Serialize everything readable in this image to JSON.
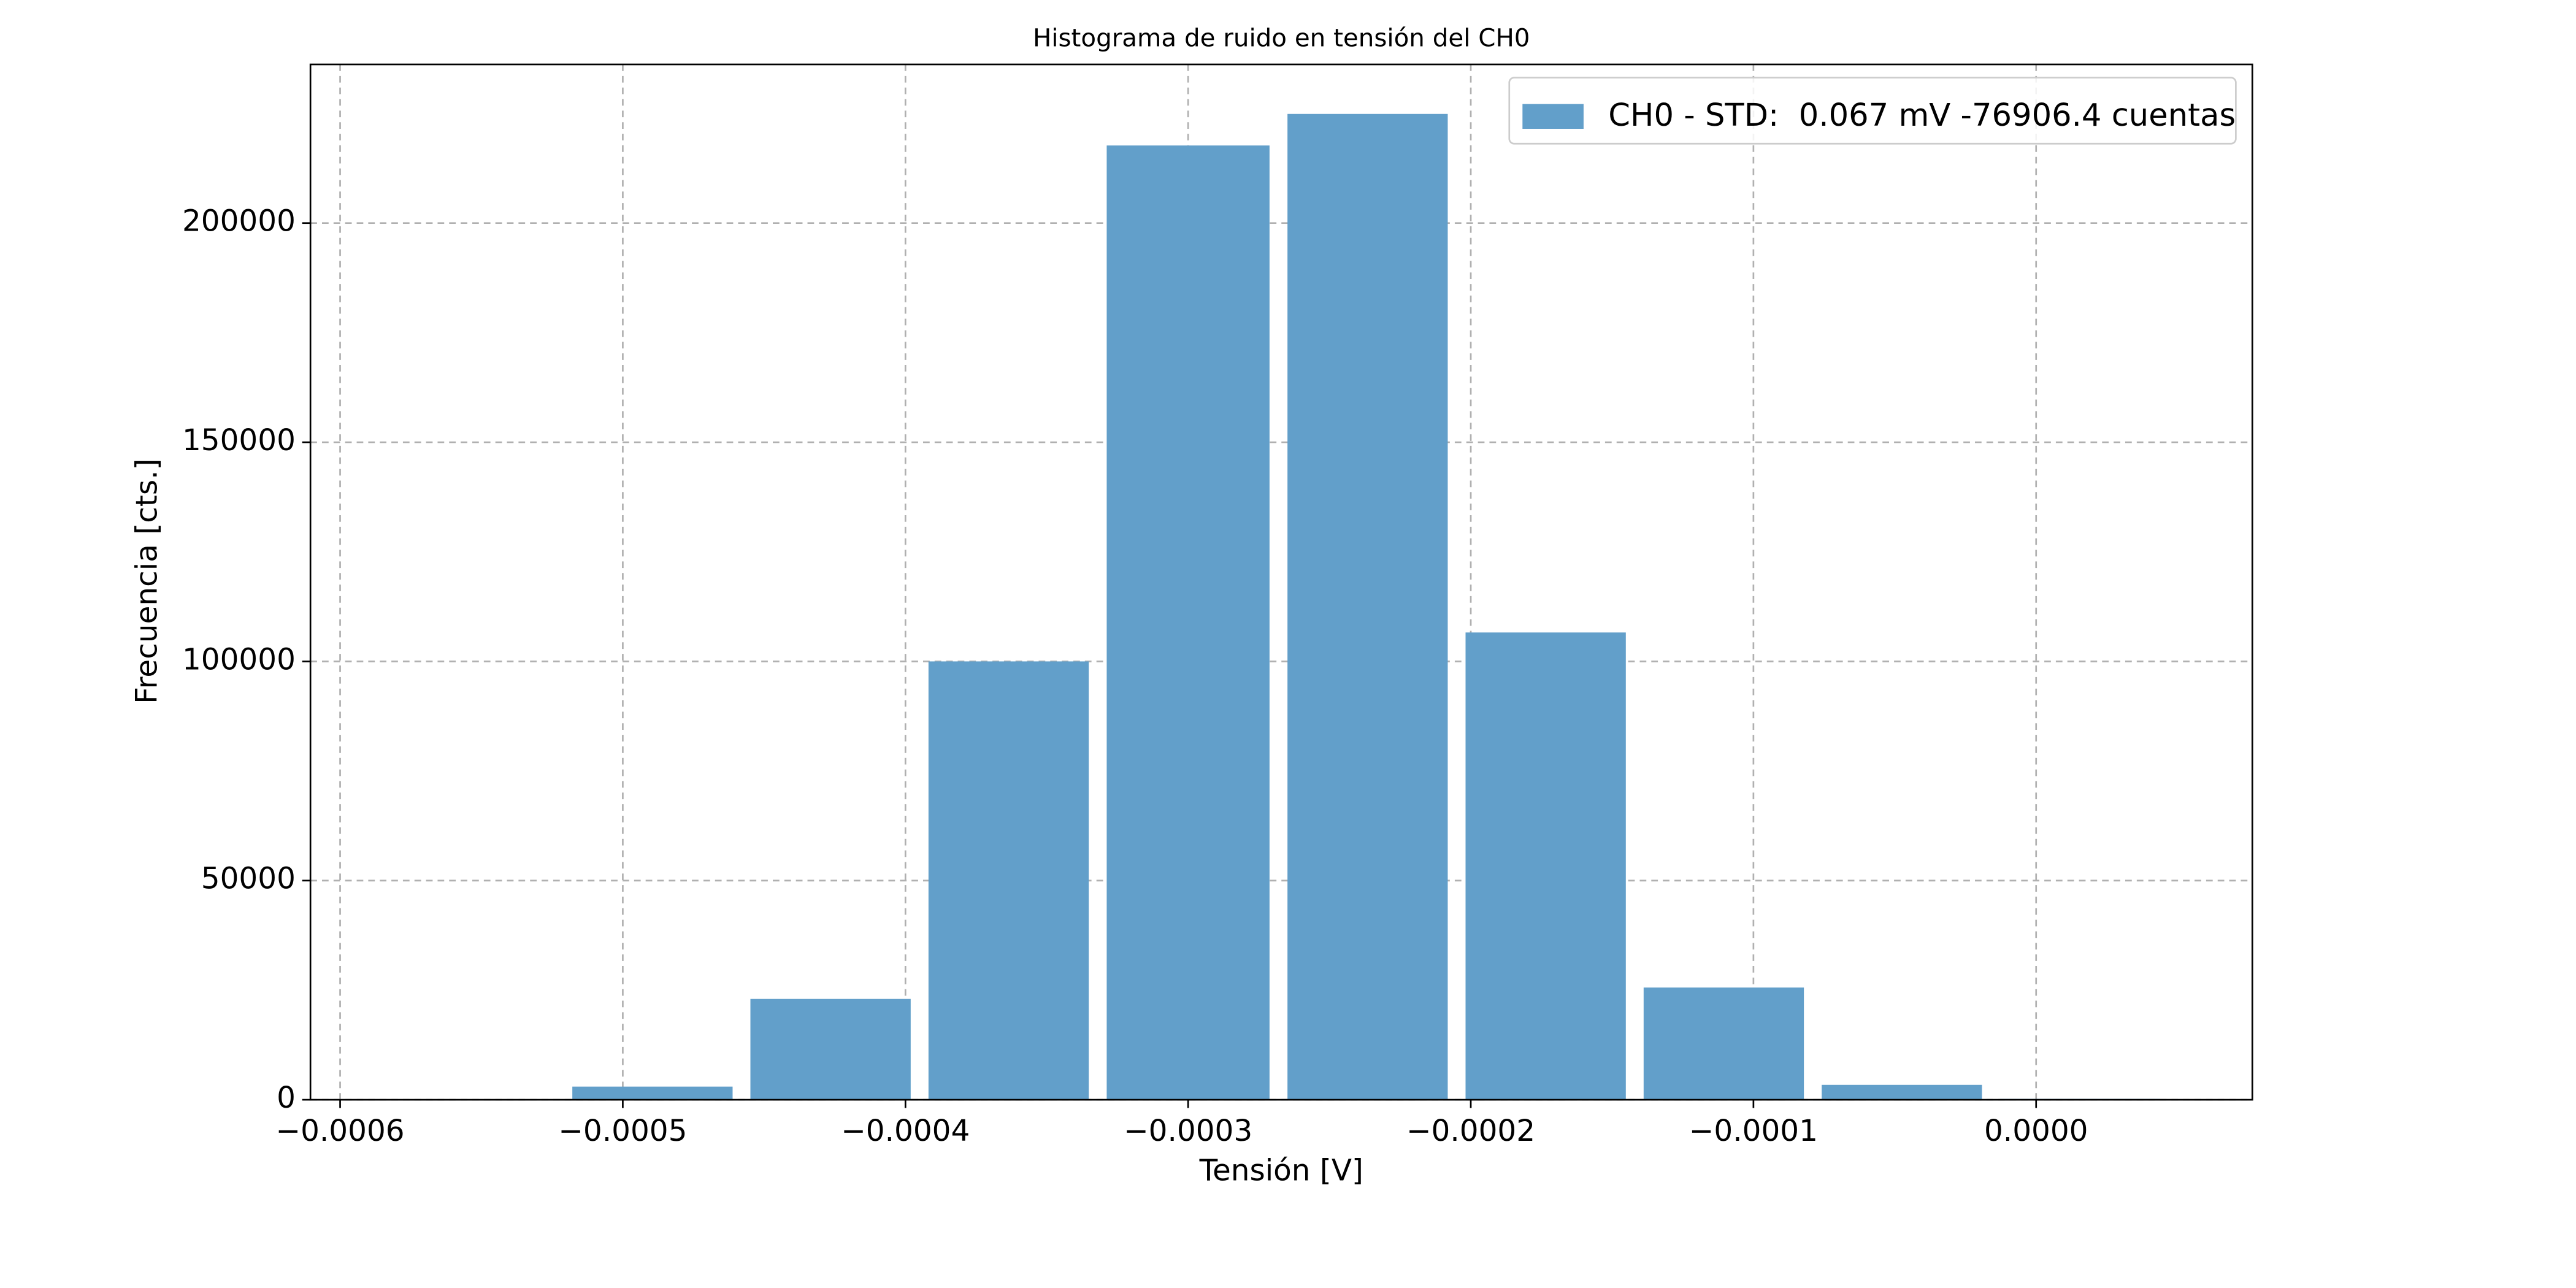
{
  "chart_data": {
    "type": "histogram",
    "title": "Histograma de ruido en tensión del CH0",
    "x_label": "Tensión [V]",
    "y_label": "Frecuencia [cts.]",
    "bins": [
      -0.000584,
      -0.000521,
      -0.000458,
      -0.000395,
      -0.000332,
      -0.000268,
      -0.000205,
      -0.000142,
      -7.9e-05,
      -1.6e-05,
      4.7e-05
    ],
    "series": [
      {
        "name": "CH0 - STD:  0.067 mV -76906.4 cuentas",
        "color": "#629fca",
        "values": [
          150,
          3000,
          23000,
          100000,
          217700,
          224900,
          106600,
          25600,
          3400,
          200
        ]
      }
    ],
    "xlim": [
      -0.0006105,
      7.65e-05
    ],
    "ylim": [
      0,
      236200
    ],
    "xticks": [
      {
        "value": -0.0006,
        "label": "−0.0006"
      },
      {
        "value": -0.0005,
        "label": "−0.0005"
      },
      {
        "value": -0.0004,
        "label": "−0.0004"
      },
      {
        "value": -0.0003,
        "label": "−0.0003"
      },
      {
        "value": -0.0002,
        "label": "−0.0002"
      },
      {
        "value": -0.0001,
        "label": "−0.0001"
      },
      {
        "value": 0,
        "label": "0.0000"
      }
    ],
    "yticks": [
      0,
      50000,
      100000,
      150000,
      200000
    ],
    "grid": true,
    "legend": "upper right"
  }
}
